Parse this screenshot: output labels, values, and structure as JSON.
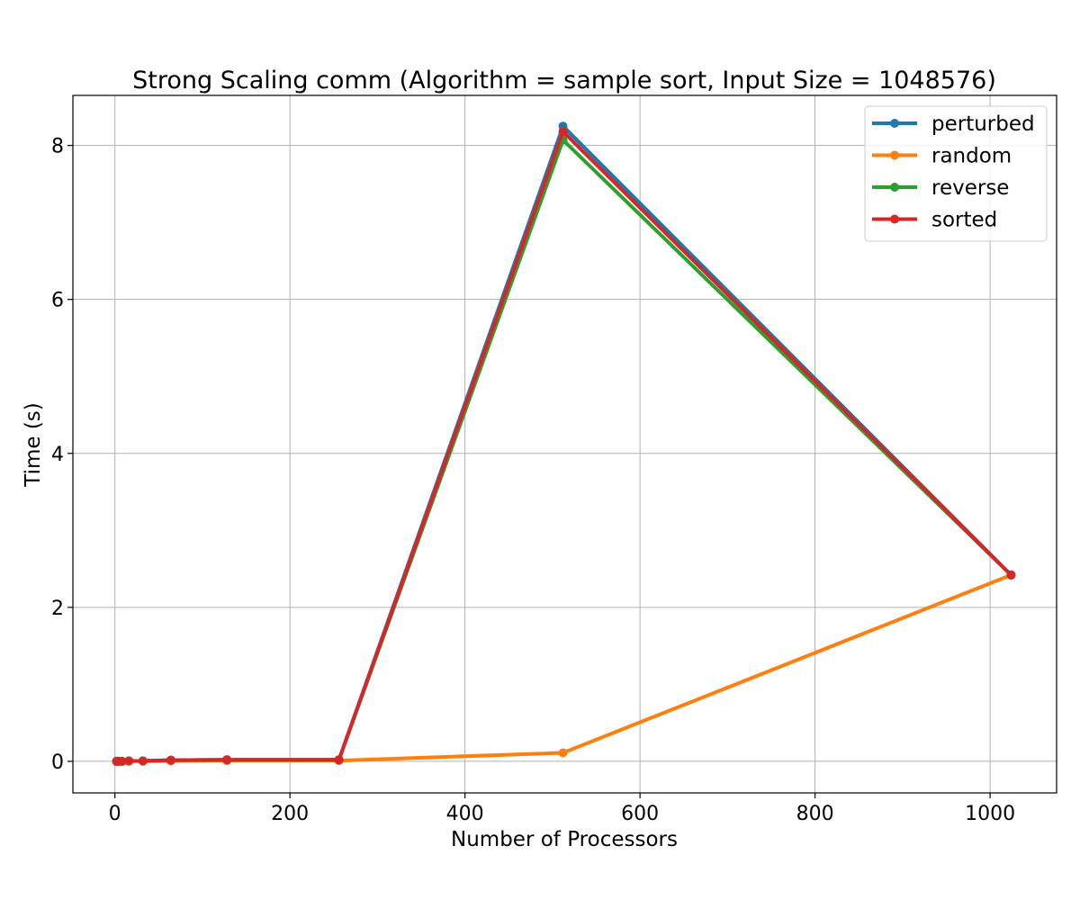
{
  "chart_data": {
    "type": "line",
    "title": "Strong Scaling comm (Algorithm = sample sort, Input Size = 1048576)",
    "xlabel": "Number of Processors",
    "ylabel": "Time (s)",
    "xlim": [
      -48,
      1076
    ],
    "ylim": [
      -0.41,
      8.65
    ],
    "xticks": [
      0,
      200,
      400,
      600,
      800,
      1000
    ],
    "yticks": [
      0,
      2,
      4,
      6,
      8
    ],
    "grid": true,
    "legend_position": "top-right",
    "x": [
      2,
      4,
      8,
      16,
      32,
      64,
      128,
      256,
      512,
      1024
    ],
    "series": [
      {
        "name": "perturbed",
        "color": "#1f77b4",
        "values": [
          0.0,
          0.0,
          0.0,
          0.005,
          0.005,
          0.015,
          0.02,
          0.02,
          8.25,
          2.42
        ]
      },
      {
        "name": "random",
        "color": "#ff7f0e",
        "values": [
          0.0,
          0.0,
          0.0,
          0.002,
          0.002,
          0.005,
          0.01,
          0.01,
          0.11,
          2.42
        ]
      },
      {
        "name": "reverse",
        "color": "#2ca02c",
        "values": [
          0.0,
          0.0,
          0.0,
          0.005,
          0.005,
          0.015,
          0.02,
          0.02,
          8.07,
          2.42
        ]
      },
      {
        "name": "sorted",
        "color": "#d62728",
        "values": [
          0.0,
          0.0,
          0.0,
          0.005,
          0.005,
          0.015,
          0.02,
          0.02,
          8.18,
          2.42
        ]
      }
    ]
  }
}
